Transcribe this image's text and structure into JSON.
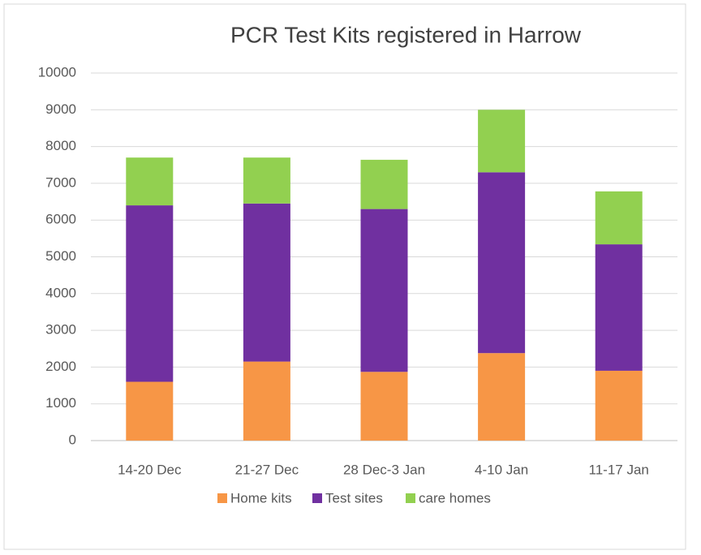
{
  "chart_data": {
    "type": "stacked_bar",
    "title": "PCR Test Kits registered in Harrow",
    "categories": [
      "14-20 Dec",
      "21-27 Dec",
      "28 Dec-3 Jan",
      "4-10 Jan",
      "11-17 Jan"
    ],
    "series": [
      {
        "name": "Home kits",
        "color": "#f79646",
        "values": [
          1600,
          2150,
          1870,
          2380,
          1900
        ]
      },
      {
        "name": "Test sites",
        "color": "#7030a0",
        "values": [
          4800,
          4300,
          4430,
          4920,
          3440
        ]
      },
      {
        "name": "care homes",
        "color": "#92d050",
        "values": [
          1300,
          1250,
          1340,
          1700,
          1440
        ]
      }
    ],
    "ylim": [
      0,
      10000
    ],
    "yticks": [
      0,
      1000,
      2000,
      3000,
      4000,
      5000,
      6000,
      7000,
      8000,
      9000,
      10000
    ],
    "grid": true,
    "legend": "bottom"
  }
}
